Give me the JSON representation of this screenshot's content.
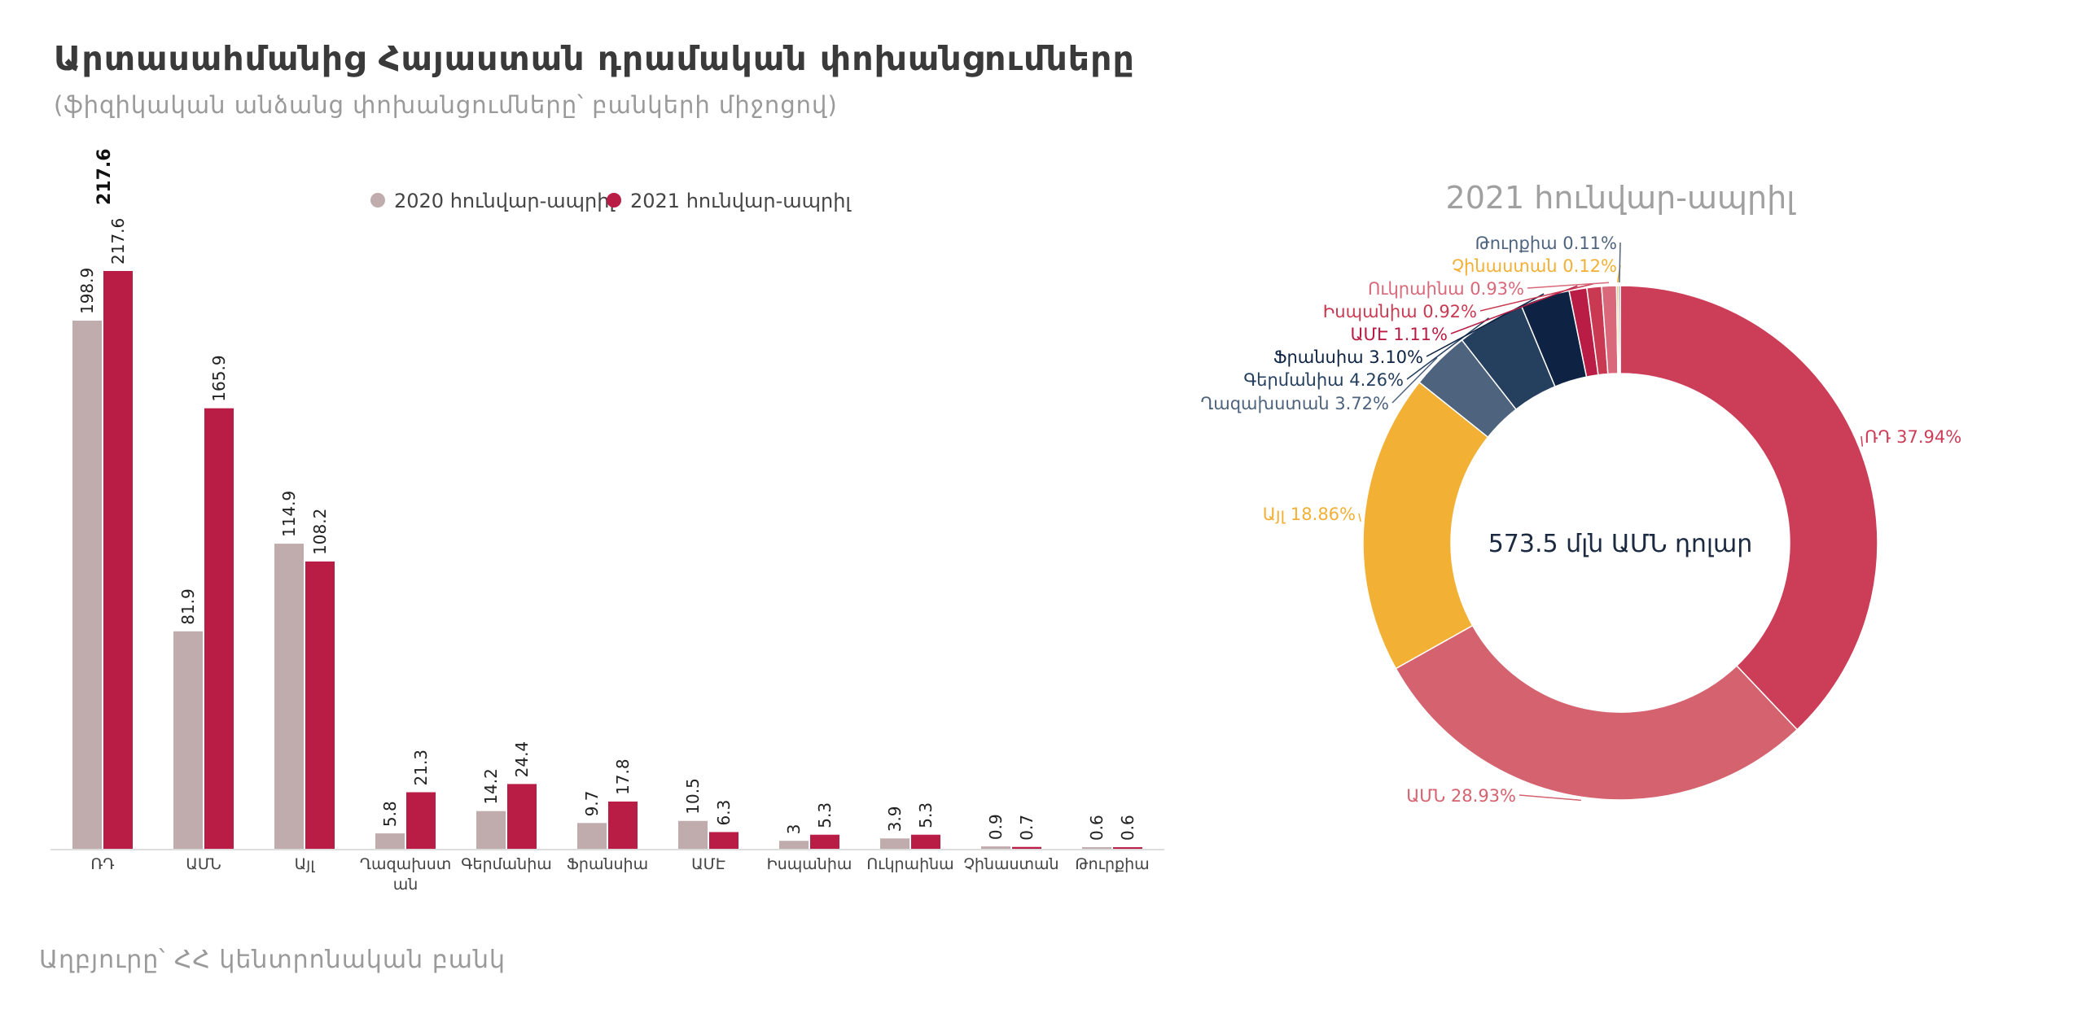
{
  "title": "Արտասահմանից Հայաստան դրամական փոխանցումները",
  "subtitle": "(ֆիզիկական անձանց փոխանցումները՝ բանկերի միջոցով)",
  "source": "Աղբյուրը՝ ՀՀ կենտրոնական բանկ",
  "colors": {
    "s2020": "#c0abad",
    "s2021": "#b91c44"
  },
  "chart_data": [
    {
      "type": "bar",
      "categories": [
        "ՌԴ",
        "ԱՄՆ",
        "Այլ",
        "Ղազախստան",
        "Գերմանիա",
        "Ֆրանսիա",
        "ԱՄԷ",
        "Իսպանիա",
        "Ուկրաինա",
        "Չինաստան",
        "Թուրքիա"
      ],
      "category_lines": [
        [
          "ՌԴ"
        ],
        [
          "ԱՄՆ"
        ],
        [
          "Այլ"
        ],
        [
          "Ղազախստ",
          "ան"
        ],
        [
          "Գերմանիա"
        ],
        [
          "Ֆրանսիա"
        ],
        [
          "ԱՄԷ"
        ],
        [
          "Իսպանիա"
        ],
        [
          "Ուկրաինա"
        ],
        [
          "Չինաստան"
        ],
        [
          "Թուրքիա"
        ]
      ],
      "series": [
        {
          "name": "2020 հունվար-ապրիլ",
          "values": [
            198.9,
            81.9,
            114.9,
            5.8,
            14.2,
            9.7,
            10.5,
            3,
            3.9,
            0.9,
            0.6
          ]
        },
        {
          "name": "2021 հունվար-ապրիլ",
          "values": [
            217.6,
            165.9,
            108.2,
            21.3,
            24.4,
            17.8,
            6.3,
            5.3,
            5.3,
            0.7,
            0.6
          ]
        }
      ],
      "max_label": "217.6",
      "ylim": [
        0,
        217.6
      ],
      "legend": "top"
    },
    {
      "type": "pie",
      "title": "2021 հունվար-ապրիլ",
      "center_label": "573.5 մլն ԱՄՆ դոլար",
      "slices": [
        {
          "label": "ՌԴ",
          "pct_label": "37.94%",
          "value": 37.94,
          "color": "#cc3d57"
        },
        {
          "label": "ԱՄՆ",
          "pct_label": "28.93%",
          "value": 28.93,
          "color": "#d5626f"
        },
        {
          "label": "Այլ",
          "pct_label": "18.86%",
          "value": 18.86,
          "color": "#f2b035"
        },
        {
          "label": "Ղազախստան",
          "pct_label": "3.72%",
          "value": 3.72,
          "color": "#4e637d"
        },
        {
          "label": "Գերմանիա",
          "pct_label": "4.26%",
          "value": 4.26,
          "color": "#253f5e"
        },
        {
          "label": "Ֆրանսիա",
          "pct_label": "3.10%",
          "value": 3.1,
          "color": "#0e2344"
        },
        {
          "label": "ԱՄԷ",
          "pct_label": "1.11%",
          "value": 1.11,
          "color": "#b91c44"
        },
        {
          "label": "Իսպանիա",
          "pct_label": "0.92%",
          "value": 0.92,
          "color": "#c93a52"
        },
        {
          "label": "Ուկրաինա",
          "pct_label": "0.93%",
          "value": 0.93,
          "color": "#d8687a"
        },
        {
          "label": "Չինաստան",
          "pct_label": "0.12%",
          "value": 0.12,
          "color": "#f2b035"
        },
        {
          "label": "Թուրքիա",
          "pct_label": "0.11%",
          "value": 0.11,
          "color": "#4e637d"
        }
      ]
    }
  ]
}
